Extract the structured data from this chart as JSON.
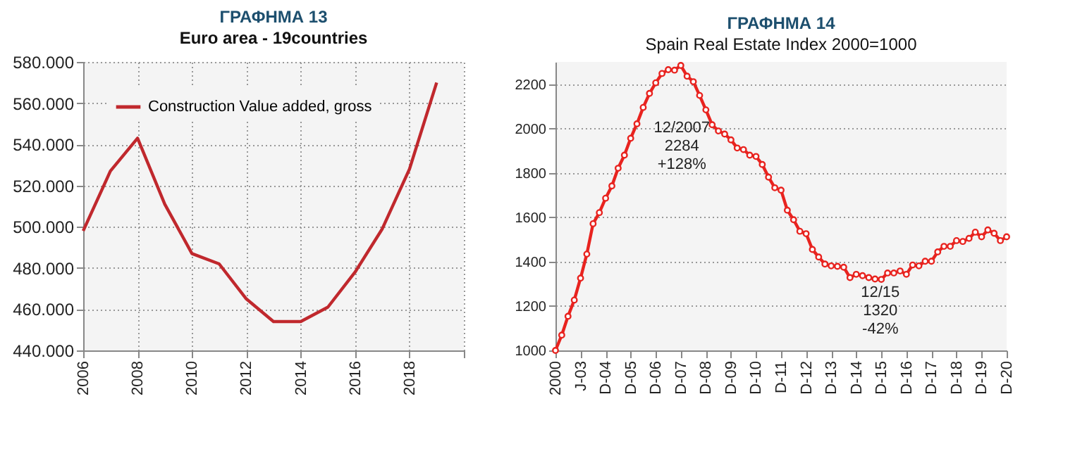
{
  "chart_data": [
    {
      "type": "line",
      "title": "ΓΡΑΦΗΜΑ 13",
      "subtitle": "Euro area - 19countries",
      "x": [
        2006,
        2007,
        2008,
        2009,
        2010,
        2011,
        2012,
        2013,
        2014,
        2015,
        2016,
        2017,
        2018,
        2019
      ],
      "series": [
        {
          "name": "Construction Value added, gross",
          "color": "#c0282d",
          "values": [
            498000,
            527000,
            543000,
            511000,
            487000,
            482000,
            465000,
            454000,
            454000,
            461000,
            478000,
            499000,
            528000,
            570000
          ]
        }
      ],
      "xlim": [
        2006,
        2020
      ],
      "xticks": [
        2006,
        2008,
        2010,
        2012,
        2014,
        2016,
        2018,
        {
          "value": 2020,
          "label": null
        }
      ],
      "ylim": [
        440000,
        580000
      ],
      "yticks": [
        {
          "value": 440000,
          "label": "440.000"
        },
        {
          "value": 460000,
          "label": "460.000"
        },
        {
          "value": 480000,
          "label": "480.000"
        },
        {
          "value": 500000,
          "label": "500.000"
        },
        {
          "value": 520000,
          "label": "520.000"
        },
        {
          "value": 540000,
          "label": "540.000"
        },
        {
          "value": 560000,
          "label": "560.000"
        },
        {
          "value": 580000,
          "label": "580.000"
        }
      ],
      "grid": true,
      "legend": "top left",
      "marker": "none",
      "line_style": "solid"
    },
    {
      "type": "line",
      "title": "ΓΡΑΦΗΜΑ 14",
      "subtitle": "Spain Real Estate Index 2000=1000",
      "categories": [
        "2000",
        null,
        null,
        null,
        "J-03",
        null,
        null,
        null,
        "D-04",
        null,
        null,
        null,
        "D-05",
        null,
        null,
        null,
        "D-06",
        null,
        null,
        null,
        "D-07",
        null,
        null,
        null,
        "D-08",
        null,
        null,
        null,
        "D-09",
        null,
        null,
        null,
        "D-10",
        null,
        null,
        null,
        "D-11",
        null,
        null,
        null,
        "D-12",
        null,
        null,
        null,
        "D-13",
        null,
        null,
        null,
        "D-14",
        null,
        null,
        null,
        "D-15",
        null,
        null,
        null,
        "D-16",
        null,
        null,
        null,
        "D-17",
        null,
        null,
        null,
        "D-18",
        null,
        null,
        null,
        "D-19",
        null,
        null,
        null,
        "D-20"
      ],
      "series": [
        {
          "color": "#e8231f",
          "values": [
            1000,
            1069,
            1154,
            1227,
            1326,
            1434,
            1571,
            1621,
            1686,
            1741,
            1821,
            1880,
            1956,
            2021,
            2095,
            2158,
            2206,
            2248,
            2265,
            2263,
            2284,
            2236,
            2211,
            2149,
            2084,
            2017,
            1989,
            1975,
            1949,
            1912,
            1905,
            1880,
            1874,
            1838,
            1781,
            1733,
            1722,
            1632,
            1589,
            1537,
            1526,
            1455,
            1421,
            1389,
            1381,
            1379,
            1375,
            1328,
            1343,
            1337,
            1328,
            1322,
            1320,
            1349,
            1349,
            1358,
            1343,
            1385,
            1381,
            1402,
            1402,
            1444,
            1469,
            1469,
            1495,
            1491,
            1505,
            1533,
            1512,
            1543,
            1528,
            1495,
            1512
          ]
        }
      ],
      "ylim": [
        1000,
        2300
      ],
      "yticks": [
        1000,
        1200,
        1400,
        1600,
        1800,
        2000,
        2200
      ],
      "grid": "y",
      "marker": "circle",
      "line_style": "solid",
      "annotations": [
        "12/2007\n2284\n+128%",
        "12/15\n1320\n-42%"
      ]
    }
  ]
}
